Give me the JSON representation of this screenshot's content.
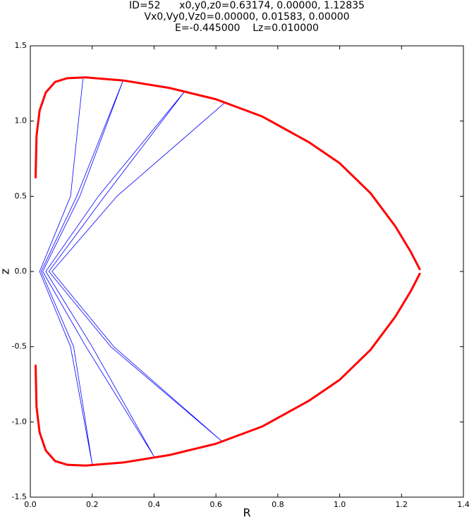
{
  "chart_data": {
    "type": "line",
    "title": [
      "ID=52      x0,y0,z0=0.63174, 0.00000, 1.12835",
      "Vx0,Vy0,Vz0=0.00000, 0.01583, 0.00000",
      "E=-0.445000    Lz=0.010000"
    ],
    "xlabel": "R",
    "ylabel": "z",
    "xlim": [
      0,
      1.4
    ],
    "ylim": [
      -1.5,
      1.5
    ],
    "xticks": [
      {
        "value": 0,
        "label": "0.0"
      },
      0.2,
      0.4,
      0.6,
      0.8,
      {
        "value": 1,
        "label": "1.0"
      },
      1.2,
      1.4
    ],
    "yticks": [
      -1.5,
      {
        "value": -1,
        "label": "-1.0"
      },
      -0.5,
      {
        "value": 0,
        "label": "0.0"
      },
      0.5,
      {
        "value": 1,
        "label": "1.0"
      },
      1.5
    ],
    "series": [
      {
        "color": "#0000ff",
        "width": 0.8,
        "x": [
          0.632,
          0.28,
          0.07,
          0.27,
          0.62,
          0.26,
          0.06,
          0.24,
          0.5,
          0.22,
          0.05,
          0.2,
          0.4,
          0.18,
          0.04,
          0.16,
          0.3,
          0.15,
          0.035,
          0.14,
          0.2,
          0.13,
          0.03,
          0.13,
          0.17
        ],
        "values": [
          1.128,
          0.5,
          0,
          -0.5,
          -1.13,
          -0.5,
          0,
          0.5,
          1.2,
          0.5,
          0,
          -0.5,
          -1.23,
          -0.5,
          0,
          0.5,
          1.27,
          0.5,
          0,
          -0.5,
          -1.28,
          -0.5,
          0,
          0.5,
          1.28
        ]
      },
      {
        "color": "#ff0000",
        "width": 3,
        "x": [
          0.017,
          0.02,
          0.03,
          0.05,
          0.08,
          0.12,
          0.18,
          0.3,
          0.45,
          0.6,
          0.75,
          0.9,
          1.0,
          1.1,
          1.18,
          1.23,
          1.26,
          null,
          1.26,
          1.23,
          1.18,
          1.1,
          1.0,
          0.9,
          0.75,
          0.6,
          0.45,
          0.3,
          0.18,
          0.12,
          0.08,
          0.05,
          0.03,
          0.02,
          0.017
        ],
        "values": [
          0.62,
          0.9,
          1.07,
          1.19,
          1.26,
          1.285,
          1.29,
          1.27,
          1.22,
          1.145,
          1.03,
          0.86,
          0.72,
          0.52,
          0.3,
          0.13,
          0.01,
          null,
          -0.01,
          -0.13,
          -0.3,
          -0.52,
          -0.72,
          -0.86,
          -1.03,
          -1.145,
          -1.22,
          -1.27,
          -1.29,
          -1.285,
          -1.26,
          -1.19,
          -1.07,
          -0.9,
          -0.62
        ]
      }
    ]
  }
}
